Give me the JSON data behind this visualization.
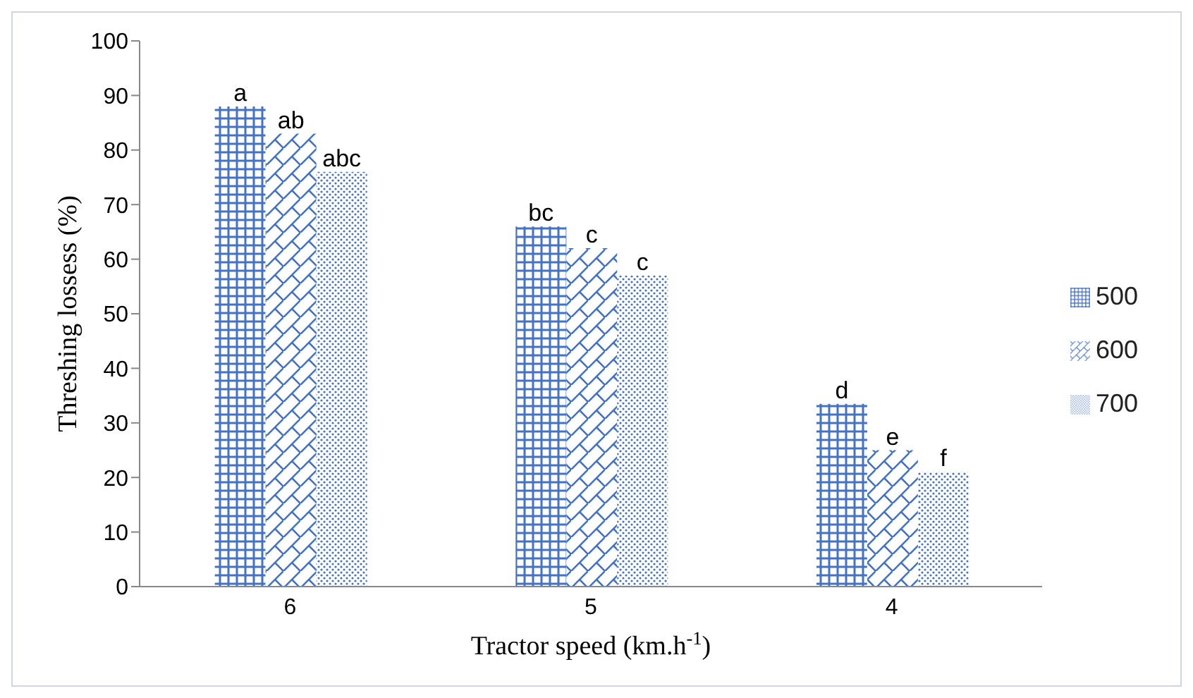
{
  "chart_data": {
    "type": "bar",
    "xlabel": "Tractor speed (km.h$^{-1}$)",
    "ylabel": "Threshing lossess (%)",
    "categories": [
      "6",
      "5",
      "4"
    ],
    "series": [
      {
        "name": "500",
        "color": "#4472c4",
        "values": [
          88,
          66,
          33.5
        ],
        "value_labels": [
          "a",
          "bc",
          "d"
        ]
      },
      {
        "name": "600",
        "color": "#4472c4",
        "values": [
          83,
          62,
          25
        ],
        "value_labels": [
          "ab",
          "c",
          "e"
        ]
      },
      {
        "name": "700",
        "color": "#4472c4",
        "values": [
          76,
          57,
          21
        ],
        "value_labels": [
          "abc",
          "c",
          "f"
        ]
      }
    ],
    "ylim": [
      0,
      100
    ],
    "yticks": [
      0,
      10,
      20,
      30,
      40,
      50,
      60,
      70,
      80,
      90,
      100
    ],
    "grid": false,
    "legend": "right"
  }
}
